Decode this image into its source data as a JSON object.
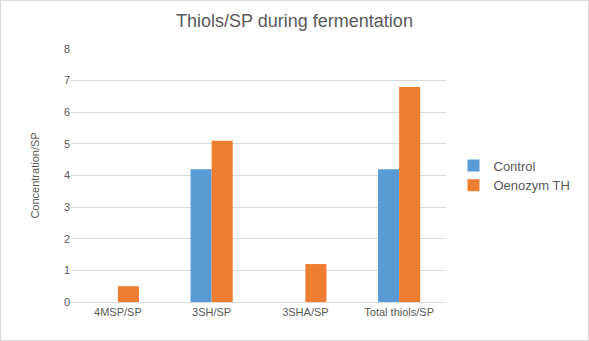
{
  "chart_data": {
    "type": "bar",
    "title": "Thiols/SP during fermentation",
    "y_label": "Concentration/SP",
    "categories": [
      "4MSP/SP",
      "3SH/SP",
      "3SHA/SP",
      "Total thiols/SP"
    ],
    "series": [
      {
        "name": "Control",
        "color": "#5b9bd5",
        "values": [
          0,
          4.2,
          0,
          4.2
        ]
      },
      {
        "name": "Oenozym TH",
        "color": "#ed7d31",
        "values": [
          0.5,
          5.1,
          1.2,
          6.8
        ]
      }
    ],
    "ylim": [
      0,
      8
    ],
    "yticks": [
      0,
      1,
      2,
      3,
      4,
      5,
      6,
      7,
      8
    ],
    "grid": true,
    "legend": "right"
  }
}
